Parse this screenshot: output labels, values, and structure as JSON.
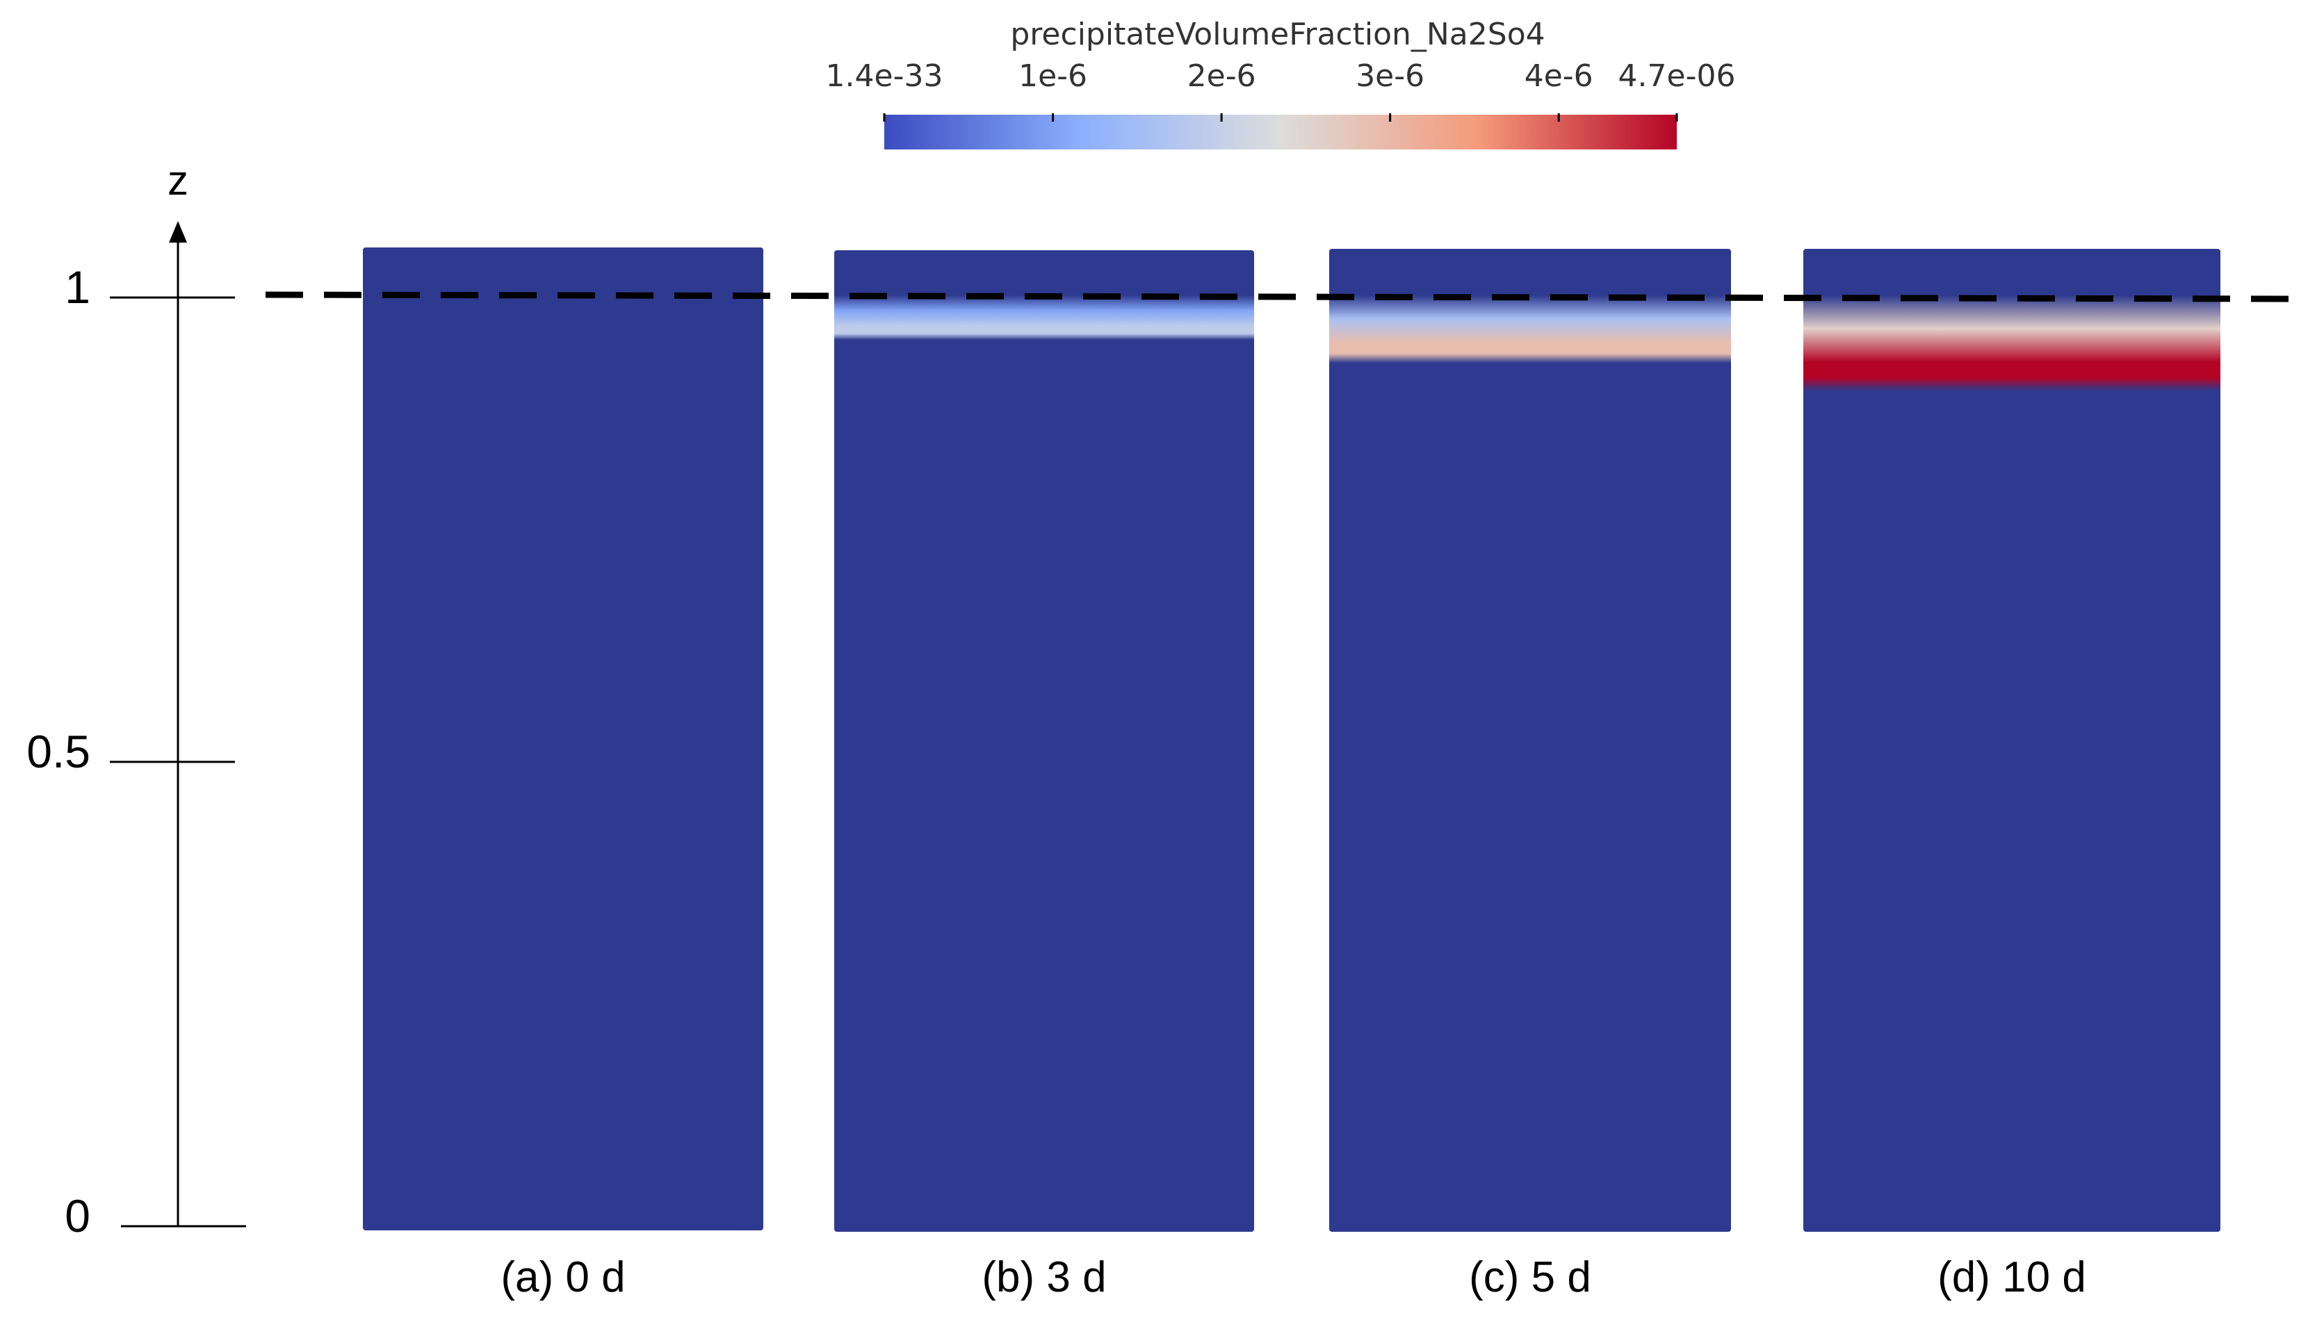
{
  "colorbar": {
    "title": "precipitateVolumeFraction_Na2So4",
    "ticks": [
      "1.4e-33",
      "1e-6",
      "2e-6",
      "3e-6",
      "4e-6",
      "4.7e-06"
    ],
    "tick_values": [
      1.4e-33,
      1e-06,
      2e-06,
      3e-06,
      4e-06,
      4.7e-06
    ],
    "range": [
      1.4e-33,
      4.7e-06
    ],
    "colormap": [
      "#3b4cc0",
      "#8db0fe",
      "#dddddd",
      "#f49a7b",
      "#b40426"
    ]
  },
  "axis": {
    "label": "z",
    "ticks": [
      "1",
      "0.5",
      "0"
    ],
    "tick_values": [
      1,
      0.5,
      0
    ]
  },
  "reference_line": {
    "z": 1,
    "style": "dashed",
    "color": "#000000"
  },
  "panels": [
    {
      "label": "(a) 0 d",
      "band": null
    },
    {
      "label": "(b) 3 d",
      "band": {
        "z_top": 0.995,
        "z_bottom": 0.965,
        "peak": 1.9e-06
      }
    },
    {
      "label": "(c) 5 d",
      "band": {
        "z_top": 0.995,
        "z_bottom": 0.94,
        "peak": 2.9e-06
      }
    },
    {
      "label": "(d) 10 d",
      "band": {
        "z_top": 0.995,
        "z_bottom": 0.91,
        "peak": 4.7e-06
      }
    }
  ],
  "colors": {
    "field": "#2e3a8f",
    "axis": "#000000"
  }
}
